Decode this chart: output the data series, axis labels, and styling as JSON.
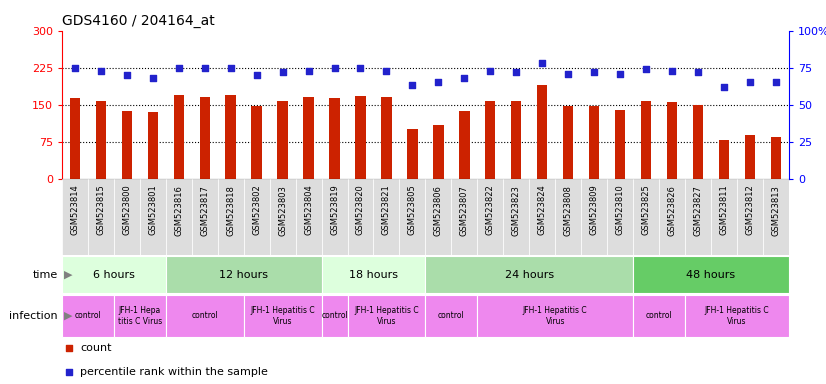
{
  "title": "GDS4160 / 204164_at",
  "samples": [
    "GSM523814",
    "GSM523815",
    "GSM523800",
    "GSM523801",
    "GSM523816",
    "GSM523817",
    "GSM523818",
    "GSM523802",
    "GSM523803",
    "GSM523804",
    "GSM523819",
    "GSM523820",
    "GSM523821",
    "GSM523805",
    "GSM523806",
    "GSM523807",
    "GSM523822",
    "GSM523823",
    "GSM523824",
    "GSM523808",
    "GSM523809",
    "GSM523810",
    "GSM523825",
    "GSM523826",
    "GSM523827",
    "GSM523811",
    "GSM523812",
    "GSM523813"
  ],
  "counts": [
    163,
    157,
    138,
    136,
    170,
    165,
    170,
    148,
    157,
    165,
    163,
    167,
    165,
    100,
    108,
    138,
    157,
    157,
    190,
    148,
    148,
    140,
    157,
    155,
    150,
    78,
    88,
    85
  ],
  "percentiles": [
    75,
    73,
    70,
    68,
    75,
    75,
    75,
    70,
    72,
    73,
    75,
    75,
    73,
    63,
    65,
    68,
    73,
    72,
    78,
    71,
    72,
    71,
    74,
    73,
    72,
    62,
    65,
    65
  ],
  "left_ylim": [
    0,
    300
  ],
  "right_ylim": [
    0,
    100
  ],
  "left_yticks": [
    0,
    75,
    150,
    225,
    300
  ],
  "right_yticks": [
    0,
    25,
    50,
    75,
    100
  ],
  "left_yticklabels": [
    "0",
    "75",
    "150",
    "225",
    "300"
  ],
  "right_yticklabels": [
    "0",
    "25",
    "50",
    "75",
    "100%"
  ],
  "bar_color": "#cc2200",
  "dot_color": "#2222cc",
  "time_colors": [
    "#ddffdd",
    "#aaddaa",
    "#ddffdd",
    "#aaddaa",
    "#66cc66"
  ],
  "infection_color": "#ee88ee",
  "label_bg_color": "#dddddd",
  "time_groups": [
    {
      "label": "6 hours",
      "start": 0,
      "end": 4
    },
    {
      "label": "12 hours",
      "start": 4,
      "end": 10
    },
    {
      "label": "18 hours",
      "start": 10,
      "end": 14
    },
    {
      "label": "24 hours",
      "start": 14,
      "end": 22
    },
    {
      "label": "48 hours",
      "start": 22,
      "end": 28
    }
  ],
  "infection_groups": [
    {
      "label": "control",
      "start": 0,
      "end": 2
    },
    {
      "label": "JFH-1 Hepa\ntitis C Virus",
      "start": 2,
      "end": 4
    },
    {
      "label": "control",
      "start": 4,
      "end": 7
    },
    {
      "label": "JFH-1 Hepatitis C\nVirus",
      "start": 7,
      "end": 10
    },
    {
      "label": "control",
      "start": 10,
      "end": 11
    },
    {
      "label": "JFH-1 Hepatitis C\nVirus",
      "start": 11,
      "end": 14
    },
    {
      "label": "control",
      "start": 14,
      "end": 16
    },
    {
      "label": "JFH-1 Hepatitis C\nVirus",
      "start": 16,
      "end": 22
    },
    {
      "label": "control",
      "start": 22,
      "end": 24
    },
    {
      "label": "JFH-1 Hepatitis C\nVirus",
      "start": 24,
      "end": 28
    }
  ]
}
